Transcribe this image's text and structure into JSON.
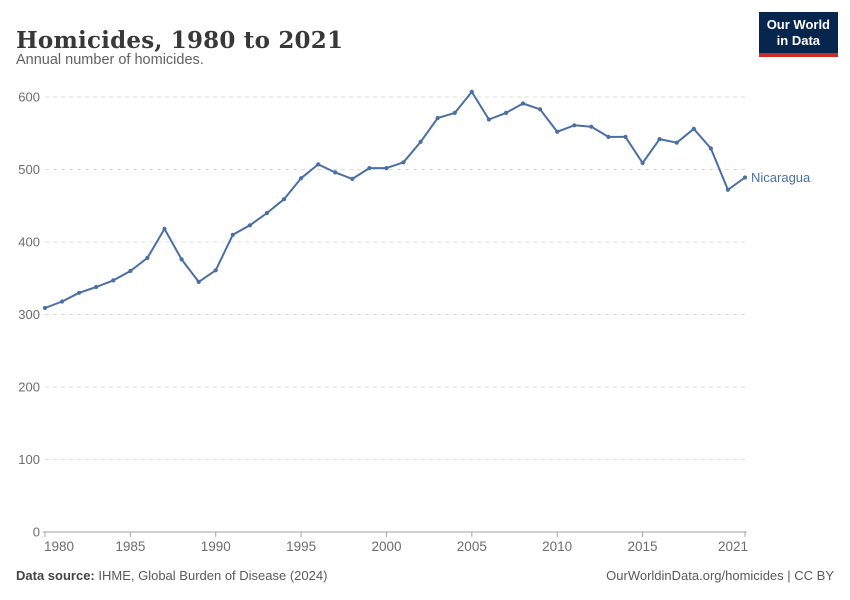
{
  "header": {
    "title": "Homicides, 1980 to 2021",
    "subtitle": "Annual number of homicides.",
    "logo_line1": "Our World",
    "logo_line2": "in Data"
  },
  "chart_data": {
    "type": "line",
    "title": "Homicides, 1980 to 2021",
    "subtitle": "Annual number of homicides.",
    "x": [
      1980,
      1981,
      1982,
      1983,
      1984,
      1985,
      1986,
      1987,
      1988,
      1989,
      1990,
      1991,
      1992,
      1993,
      1994,
      1995,
      1996,
      1997,
      1998,
      1999,
      2000,
      2001,
      2002,
      2003,
      2004,
      2005,
      2006,
      2007,
      2008,
      2009,
      2010,
      2011,
      2012,
      2013,
      2014,
      2015,
      2016,
      2017,
      2018,
      2019,
      2020,
      2021
    ],
    "series": [
      {
        "name": "Nicaragua",
        "color": "#4a6fa5",
        "values": [
          309,
          318,
          330,
          338,
          347,
          360,
          378,
          418,
          376,
          345,
          361,
          410,
          423,
          440,
          459,
          488,
          507,
          496,
          487,
          502,
          502,
          510,
          538,
          571,
          578,
          607,
          569,
          578,
          591,
          583,
          552,
          561,
          559,
          545,
          545,
          509,
          542,
          537,
          556,
          529,
          472,
          489
        ]
      }
    ],
    "xlabel": "",
    "ylabel": "",
    "xlim": [
      1980,
      2021
    ],
    "ylim": [
      0,
      600
    ],
    "x_ticks": [
      1980,
      1985,
      1990,
      1995,
      2000,
      2005,
      2010,
      2015,
      2021
    ],
    "y_ticks": [
      0,
      100,
      200,
      300,
      400,
      500,
      600
    ],
    "grid": "horizontal-dashed",
    "legend_position": "line-end-label"
  },
  "footer": {
    "source_label": "Data source:",
    "source_value": "IHME, Global Burden of Disease (2024)",
    "credit": "OurWorldinData.org/homicides | CC BY"
  },
  "colors": {
    "accent_line": "#4a6fa5",
    "entity_label": "#4a6fa5",
    "logo_bg": "#06264d",
    "logo_stripe": "#cc2a22",
    "grid": "#dcdcdc",
    "axis": "#a3a3a3",
    "tick_text": "#6d6d6d"
  }
}
